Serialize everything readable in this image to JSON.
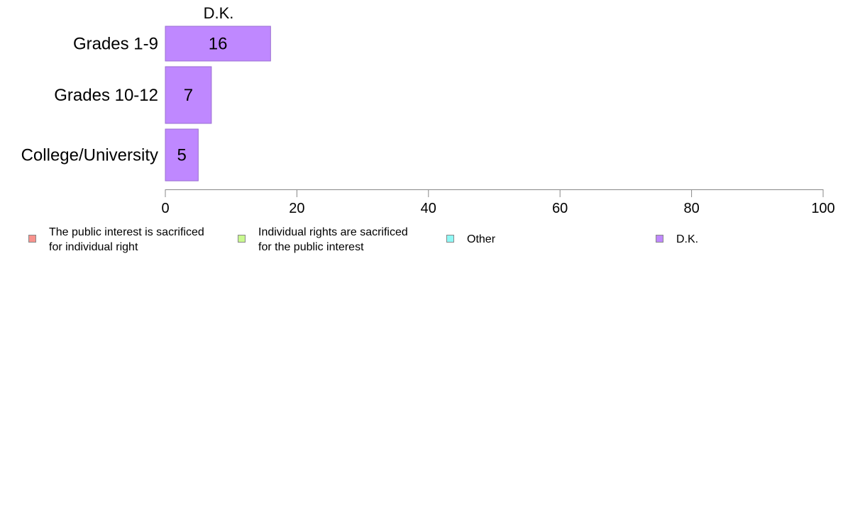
{
  "chart_data": {
    "type": "bar",
    "orientation": "horizontal",
    "facet_title": "D.K.",
    "categories": [
      "Grades 1-9",
      "Grades 10-12",
      "College/University"
    ],
    "series": [
      {
        "name": "D.K.",
        "values": [
          16,
          7,
          5
        ],
        "labels": [
          "16",
          "7",
          "5"
        ],
        "color": "#bf88ff"
      }
    ],
    "xlim": [
      0,
      100
    ],
    "xticks": [
      "0",
      "20",
      "40",
      "60",
      "80",
      "100"
    ],
    "xlabel": "",
    "ylabel": "",
    "grid": false,
    "legend_position": "bottom",
    "legend": [
      {
        "label": "The public interest is sacrificed\nfor individual right",
        "color": "#f8928d"
      },
      {
        "label": "Individual rights are sacrificed\nfor the public interest",
        "color": "#c9f98f"
      },
      {
        "label": "Other",
        "color": "#8ff8f5"
      },
      {
        "label": "D.K.",
        "color": "#bf88ff"
      }
    ]
  }
}
